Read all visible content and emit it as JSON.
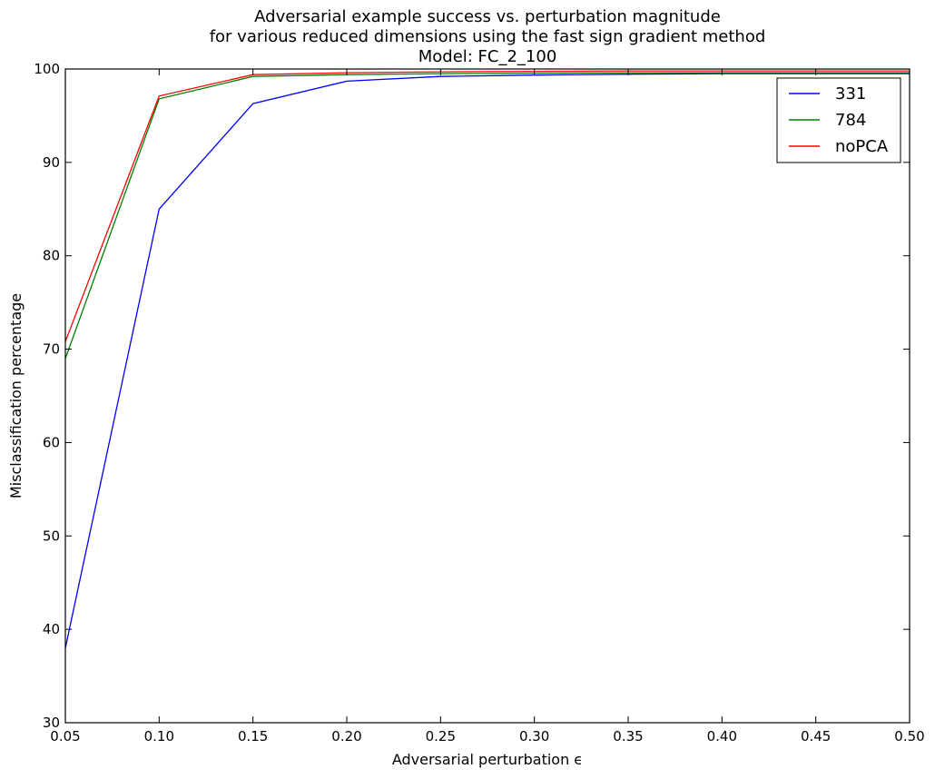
{
  "chart_data": {
    "type": "line",
    "title": [
      "Adversarial example success vs. perturbation magnitude",
      "for various reduced dimensions using the fast sign gradient method",
      "Model: FC_2_100"
    ],
    "xlabel": "Adversarial perturbation ϵ",
    "ylabel": "Misclassification percentage",
    "xlim": [
      0.05,
      0.5
    ],
    "ylim": [
      30,
      100
    ],
    "xticks": [
      "0.05",
      "0.10",
      "0.15",
      "0.20",
      "0.25",
      "0.30",
      "0.35",
      "0.40",
      "0.45",
      "0.50"
    ],
    "yticks": [
      "30",
      "40",
      "50",
      "60",
      "70",
      "80",
      "90",
      "100"
    ],
    "grid": false,
    "legend_position": "top-right",
    "x": [
      0.05,
      0.1,
      0.15,
      0.2,
      0.25,
      0.3,
      0.35,
      0.4,
      0.45,
      0.5
    ],
    "series": [
      {
        "name": "331",
        "color": "#0000ff",
        "values": [
          38.0,
          85.0,
          96.3,
          98.7,
          99.2,
          99.35,
          99.45,
          99.5,
          99.5,
          99.5
        ]
      },
      {
        "name": "784",
        "color": "#008000",
        "values": [
          69.0,
          96.8,
          99.2,
          99.4,
          99.5,
          99.55,
          99.6,
          99.6,
          99.6,
          99.6
        ]
      },
      {
        "name": "noPCA",
        "color": "#ff0000",
        "values": [
          70.8,
          97.1,
          99.4,
          99.6,
          99.7,
          99.75,
          99.8,
          99.8,
          99.8,
          99.8
        ]
      }
    ]
  }
}
